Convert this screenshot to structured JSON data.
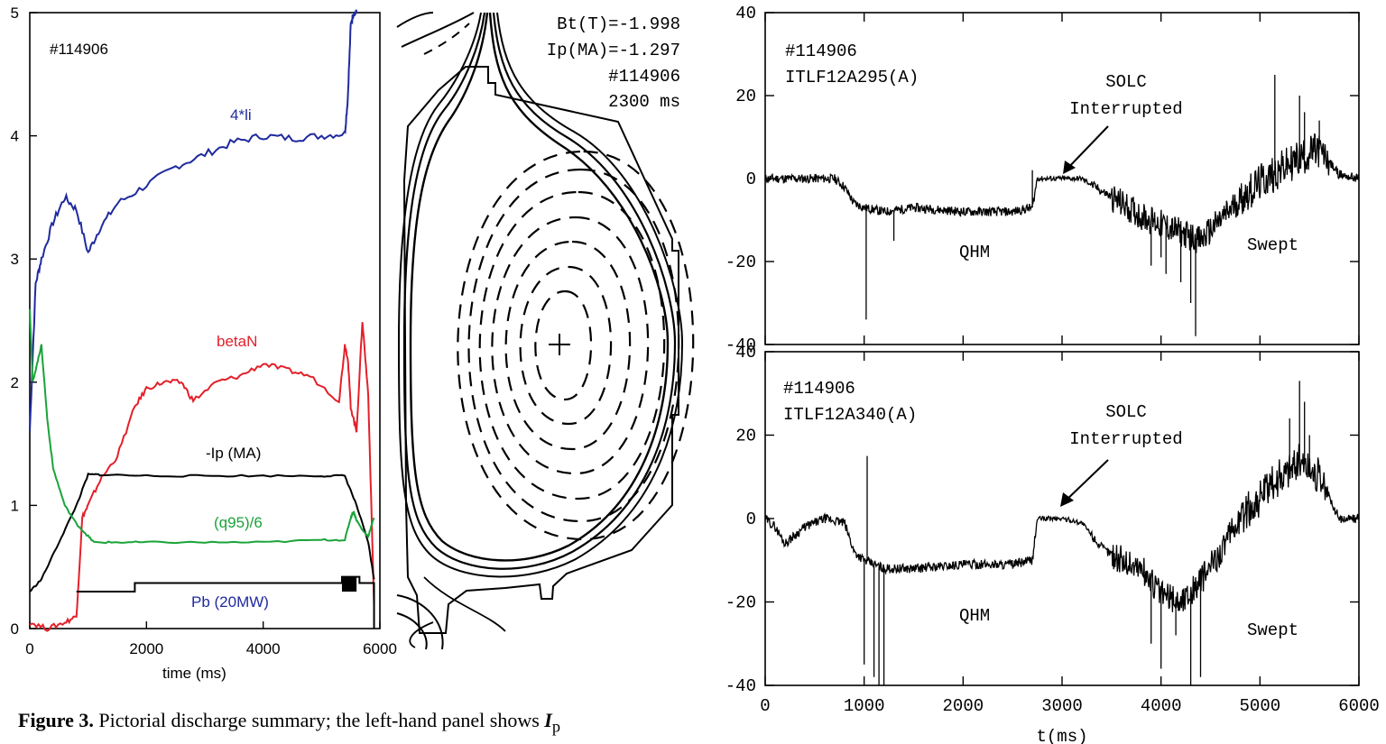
{
  "left_panel": {
    "shot": "#114906",
    "labels": {
      "li": "4*li",
      "betan": "betaN",
      "ip": "-Ip (MA)",
      "q95": "(q95)/6",
      "pb": "Pb (20MW)"
    },
    "colors": {
      "li": "#1f2a9e",
      "betan": "#e3202a",
      "ip": "#000000",
      "q95": "#1aa33a",
      "pb": "#000000"
    },
    "xlabel": "time (ms)",
    "xticks": [
      "0",
      "2000",
      "4000",
      "6000"
    ],
    "yticks": [
      "0",
      "1",
      "2",
      "3",
      "4",
      "5"
    ]
  },
  "equilibrium": {
    "bt": "Bt(T)=-1.998",
    "ip": "Ip(MA)=-1.297",
    "shot": "#114906",
    "time": "2300 ms"
  },
  "right_panels": {
    "top": {
      "shot": "#114906",
      "channel": "ITLF12A295(A)",
      "annotation_1": "SOLC",
      "annotation_2": "Interrupted",
      "qhm": "QHM",
      "swept": "Swept"
    },
    "bottom": {
      "shot": "#114906",
      "channel": "ITLF12A340(A)",
      "annotation_1": "SOLC",
      "annotation_2": "Interrupted",
      "qhm": "QHM",
      "swept": "Swept"
    },
    "yticks": [
      "40",
      "20",
      "0",
      "-20",
      "-40"
    ],
    "xticks": [
      "0",
      "1000",
      "2000",
      "3000",
      "4000",
      "5000",
      "6000"
    ],
    "xlabel": "t(ms)"
  },
  "caption": {
    "label": "Figure 3.",
    "text": " Pictorial discharge summary; the left-hand panel shows ",
    "symbol": "I",
    "sub": "p"
  },
  "chart_data": [
    {
      "type": "line",
      "title": "",
      "xlabel": "time (ms)",
      "ylabel": "",
      "xlim": [
        0,
        6000
      ],
      "ylim": [
        0,
        5
      ],
      "series": [
        {
          "name": "4*li",
          "x": [
            0,
            100,
            200,
            400,
            600,
            800,
            1000,
            1200,
            1500,
            2000,
            2500,
            3000,
            3500,
            4000,
            4500,
            5000,
            5400,
            5450,
            5500,
            5550,
            5600
          ],
          "values": [
            1.6,
            2.8,
            3.0,
            3.3,
            3.5,
            3.4,
            3.05,
            3.25,
            3.45,
            3.6,
            3.75,
            3.85,
            3.95,
            4.0,
            3.98,
            4.0,
            4.02,
            4.3,
            4.9,
            5.0,
            5.0
          ]
        },
        {
          "name": "betaN",
          "x": [
            0,
            300,
            600,
            800,
            900,
            1000,
            1200,
            1500,
            1800,
            2000,
            2300,
            2600,
            2800,
            3200,
            3600,
            4000,
            4400,
            4800,
            5300,
            5400,
            5450,
            5500,
            5600,
            5700,
            5800,
            5900
          ],
          "values": [
            0.05,
            0.0,
            0.05,
            0.1,
            0.9,
            1.0,
            1.2,
            1.4,
            1.8,
            1.95,
            2.0,
            2.0,
            1.85,
            2.0,
            2.05,
            2.15,
            2.1,
            2.05,
            1.85,
            2.3,
            2.2,
            1.8,
            1.6,
            2.5,
            1.9,
            0.2
          ]
        },
        {
          "name": "-Ip (MA)",
          "x": [
            0,
            200,
            500,
            800,
            1000,
            1200,
            2000,
            3000,
            4000,
            5000,
            5400,
            5600,
            5800,
            5900
          ],
          "values": [
            0.3,
            0.4,
            0.7,
            1.0,
            1.25,
            1.25,
            1.24,
            1.24,
            1.24,
            1.24,
            1.24,
            1.0,
            0.7,
            0.4
          ]
        },
        {
          "name": "(q95)/6",
          "x": [
            0,
            50,
            150,
            200,
            300,
            400,
            600,
            800,
            1000,
            1100,
            1500,
            2000,
            3000,
            4000,
            5000,
            5400,
            5500,
            5550,
            5600,
            5700,
            5800,
            5900
          ],
          "values": [
            2.6,
            2.0,
            2.2,
            2.3,
            1.7,
            1.3,
            1.0,
            0.85,
            0.75,
            0.7,
            0.7,
            0.7,
            0.7,
            0.7,
            0.72,
            0.72,
            0.9,
            0.95,
            0.88,
            0.8,
            0.75,
            0.9
          ]
        },
        {
          "name": "Pb (20MW)",
          "x": [
            800,
            1700,
            1800,
            5300,
            5350,
            5600,
            5650,
            5900
          ],
          "values": [
            0.3,
            0.3,
            0.37,
            0.37,
            0.42,
            0.42,
            0.37,
            0.0
          ]
        }
      ]
    },
    {
      "type": "line",
      "title": "",
      "xlabel": "",
      "ylabel": "",
      "xlim": [
        0,
        6000
      ],
      "ylim": [
        -40,
        40
      ],
      "series": [
        {
          "name": "ITLF12A295(A)",
          "x": [
            0,
            700,
            800,
            900,
            1000,
            1200,
            1500,
            2000,
            2500,
            2700,
            2750,
            3000,
            3200,
            3400,
            3600,
            3800,
            4000,
            4200,
            4400,
            4600,
            4800,
            5000,
            5200,
            5400,
            5600,
            5800,
            6000
          ],
          "values": [
            0,
            0,
            -2,
            -6,
            -7,
            -8,
            -7,
            -8,
            -8,
            -7,
            0,
            0,
            0,
            -3,
            -6,
            -9,
            -11,
            -13,
            -15,
            -10,
            -5,
            -1,
            2,
            5,
            7,
            1,
            0
          ]
        }
      ]
    },
    {
      "type": "line",
      "title": "",
      "xlabel": "t(ms)",
      "ylabel": "",
      "xlim": [
        0,
        6000
      ],
      "ylim": [
        -40,
        40
      ],
      "series": [
        {
          "name": "ITLF12A340(A)",
          "x": [
            0,
            100,
            200,
            400,
            600,
            800,
            900,
            1000,
            1200,
            1500,
            2000,
            2500,
            2700,
            2750,
            3000,
            3200,
            3400,
            3600,
            3800,
            4000,
            4200,
            4400,
            4600,
            4800,
            5000,
            5200,
            5400,
            5600,
            5800,
            6000
          ],
          "values": [
            0,
            -2,
            -6,
            -2,
            0,
            -1,
            -8,
            -10,
            -12,
            -12,
            -11,
            -11,
            -10,
            0,
            0,
            -1,
            -7,
            -10,
            -12,
            -18,
            -20,
            -15,
            -8,
            0,
            5,
            10,
            14,
            10,
            0,
            0
          ]
        }
      ]
    }
  ]
}
